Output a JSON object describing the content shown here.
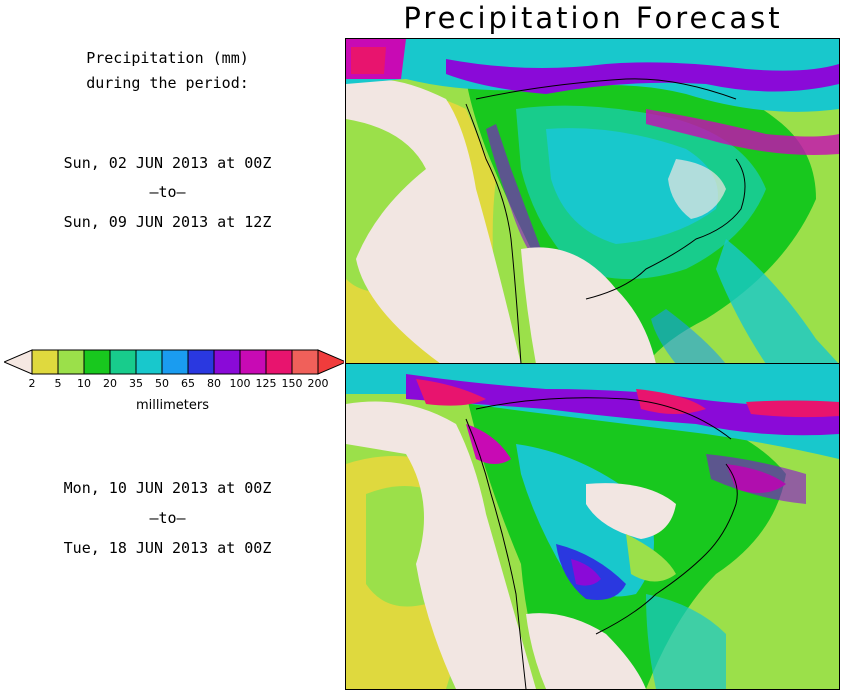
{
  "title": "Precipitation Forecast",
  "description": {
    "line1": "Precipitation (mm)",
    "line2": "during the period:"
  },
  "period1": {
    "start": "Sun, 02 JUN 2013 at 00Z",
    "separator": "–to–",
    "end": "Sun, 09 JUN 2013 at 12Z"
  },
  "period2": {
    "start": "Mon, 10 JUN 2013 at 00Z",
    "separator": "–to–",
    "end": "Tue, 18 JUN 2013 at 00Z"
  },
  "legend": {
    "units": "millimeters",
    "thresholds": [
      "2",
      "5",
      "10",
      "20",
      "35",
      "50",
      "65",
      "80",
      "100",
      "125",
      "150",
      "200"
    ],
    "colors": [
      "#f5e8e2",
      "#dfd93e",
      "#9be04a",
      "#18c81e",
      "#18cc8c",
      "#18c8cc",
      "#1a9cf0",
      "#2a38e0",
      "#8a0ad8",
      "#c80ab4",
      "#e8146e",
      "#f0605a",
      "#f03c3c"
    ]
  },
  "colors": {
    "land_dry": "#f2e6e2",
    "ocean_low": "#9be04a"
  }
}
